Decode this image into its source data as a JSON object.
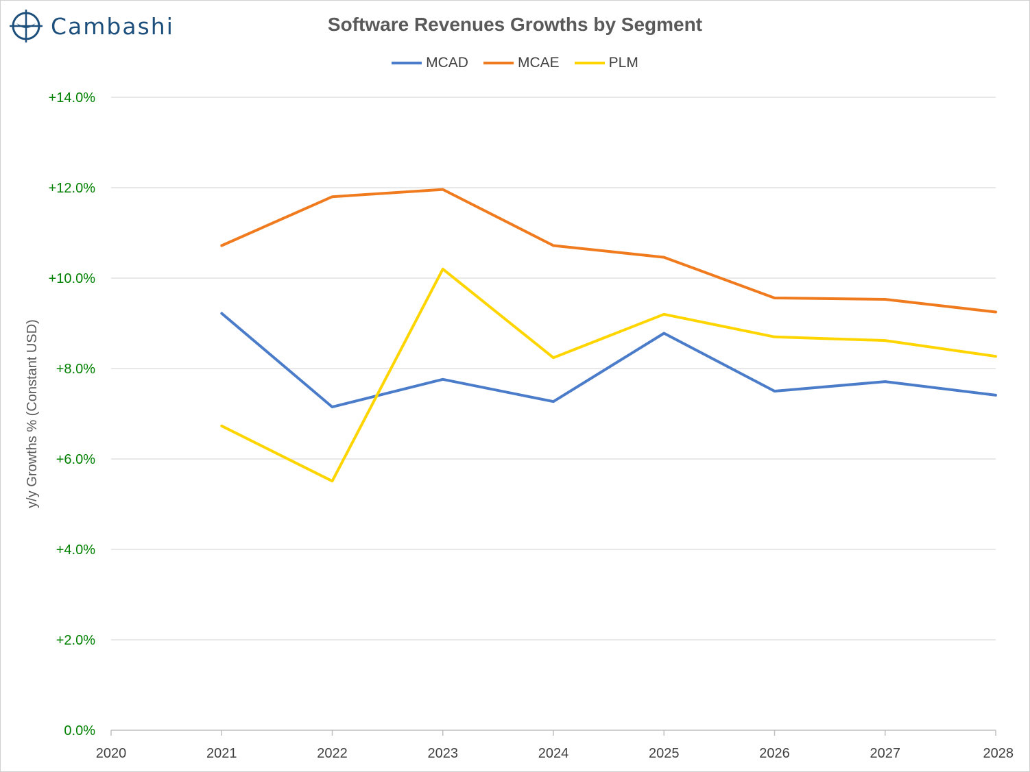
{
  "logo": {
    "text": "Cambashi",
    "color": "#1d4f7c"
  },
  "chart_data": {
    "type": "line",
    "title": "Software Revenues Growths by Segment",
    "ylabel": "y/y Growths % (Constant USD)",
    "xlabel": "",
    "x": [
      2021,
      2022,
      2023,
      2024,
      2025,
      2026,
      2027,
      2028
    ],
    "xlim": [
      2020,
      2028
    ],
    "x_ticks": [
      "2020",
      "2021",
      "2022",
      "2023",
      "2024",
      "2025",
      "2026",
      "2027",
      "2028"
    ],
    "ylim": [
      0,
      14
    ],
    "y_ticks": [
      "0.0%",
      "+2.0%",
      "+4.0%",
      "+6.0%",
      "+8.0%",
      "+10.0%",
      "+12.0%",
      "+14.0%"
    ],
    "grid": true,
    "legend_position": "top",
    "series": [
      {
        "name": "MCAD",
        "color": "#4a7cc9",
        "values": [
          9.22,
          7.15,
          7.76,
          7.27,
          8.78,
          7.5,
          7.71,
          7.41
        ]
      },
      {
        "name": "MCAE",
        "color": "#f07b1f",
        "values": [
          10.72,
          11.8,
          11.96,
          10.72,
          10.46,
          9.56,
          9.53,
          9.25
        ]
      },
      {
        "name": "PLM",
        "color": "#ffd500",
        "values": [
          6.73,
          5.51,
          10.2,
          8.24,
          9.2,
          8.7,
          8.62,
          8.27
        ]
      }
    ]
  }
}
